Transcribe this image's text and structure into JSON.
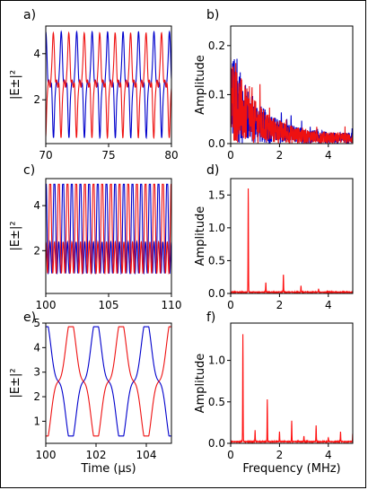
{
  "figure": {
    "xlabel_time": "Time (μs)",
    "xlabel_freq": "Frequency (MHz)",
    "colors": {
      "blue": "#0000cc",
      "red": "#ee1111",
      "series_b": "#ff1010"
    }
  },
  "chart_data": [
    {
      "id": "a",
      "panel_label": "a)",
      "type": "line",
      "ylabel": "|E±|²",
      "xlim": [
        70,
        80
      ],
      "ylim": [
        0.1,
        5.2
      ],
      "xticks": [
        70,
        75,
        80
      ],
      "yticks": [
        2,
        4
      ],
      "series": [
        {
          "color": "blue",
          "period": 1.23,
          "phase": 70.0,
          "y_min": 0.35,
          "y_max": 4.95,
          "shape": "spiky"
        },
        {
          "color": "red",
          "period": 1.23,
          "phase": 70.6,
          "y_min": 0.35,
          "y_max": 4.9,
          "shape": "spiky"
        }
      ]
    },
    {
      "id": "b",
      "panel_label": "b)",
      "type": "line",
      "ylabel": "Amplitude",
      "xlim": [
        0,
        5
      ],
      "ylim": [
        0,
        0.24
      ],
      "xticks": [
        0,
        2,
        4
      ],
      "yticks": [
        0.0,
        0.1,
        0.2
      ],
      "series": [
        {
          "color": "blue",
          "noise_start": 0.2,
          "noise_end": 0.02
        },
        {
          "color": "red",
          "noise_start": 0.19,
          "noise_end": 0.02
        }
      ]
    },
    {
      "id": "c",
      "panel_label": "c)",
      "type": "line",
      "ylabel": "|E±|²",
      "xlim": [
        100,
        110
      ],
      "ylim": [
        0.1,
        5.2
      ],
      "xticks": [
        100,
        105,
        110
      ],
      "yticks": [
        2,
        4
      ],
      "series": [
        {
          "color": "blue",
          "period": 0.69,
          "phase": 100.0,
          "y_min": 0.3,
          "y_max": 4.95,
          "shape": "double"
        },
        {
          "color": "red",
          "period": 0.69,
          "phase": 100.35,
          "y_min": 0.3,
          "y_max": 4.95,
          "shape": "double"
        }
      ]
    },
    {
      "id": "d",
      "panel_label": "d)",
      "type": "line",
      "ylabel": "Amplitude",
      "xlim": [
        0,
        5
      ],
      "ylim": [
        0,
        1.75
      ],
      "xticks": [
        0,
        2,
        4
      ],
      "yticks": [
        0.0,
        0.5,
        1.0,
        1.5
      ],
      "series": [
        {
          "color": "series_b",
          "peaks": [
            [
              0.72,
              1.6
            ],
            [
              1.44,
              0.15
            ],
            [
              2.16,
              0.28
            ],
            [
              2.88,
              0.1
            ],
            [
              3.6,
              0.05
            ]
          ]
        }
      ]
    },
    {
      "id": "e",
      "panel_label": "e)",
      "type": "line",
      "ylabel": "|E±|²",
      "xlim": [
        100,
        105
      ],
      "ylim": [
        0.1,
        5.0
      ],
      "xticks": [
        100,
        102,
        104
      ],
      "yticks": [
        1,
        2,
        3,
        4,
        5
      ],
      "series": [
        {
          "color": "blue",
          "period": 2.0,
          "phase": 100.0,
          "y_min": 0.4,
          "y_max": 4.85,
          "shape": "smooth"
        },
        {
          "color": "red",
          "period": 2.0,
          "phase": 101.0,
          "y_min": 0.4,
          "y_max": 4.85,
          "shape": "smooth"
        }
      ]
    },
    {
      "id": "f",
      "panel_label": "f)",
      "type": "line",
      "ylabel": "Amplitude",
      "xlim": [
        0,
        5
      ],
      "ylim": [
        0,
        1.45
      ],
      "xticks": [
        0,
        2,
        4
      ],
      "yticks": [
        0.0,
        0.5,
        1.0
      ],
      "series": [
        {
          "color": "series_b",
          "peaks": [
            [
              0.5,
              1.3
            ],
            [
              1.0,
              0.14
            ],
            [
              1.5,
              0.51
            ],
            [
              2.0,
              0.12
            ],
            [
              2.5,
              0.25
            ],
            [
              3.0,
              0.07
            ],
            [
              3.5,
              0.2
            ],
            [
              4.0,
              0.05
            ],
            [
              4.5,
              0.12
            ],
            [
              5.0,
              0.1
            ]
          ]
        }
      ]
    }
  ]
}
